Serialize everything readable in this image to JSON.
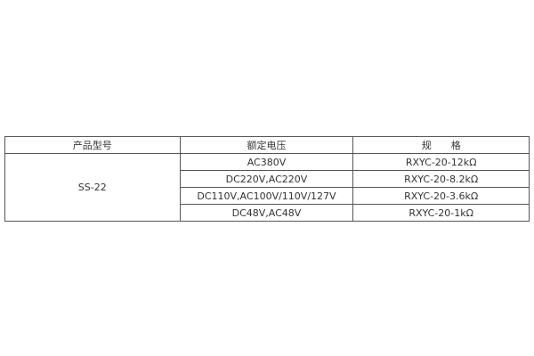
{
  "table": {
    "headers": [
      "产品型号",
      "额定电压",
      "规　　格"
    ],
    "model": "SS-22",
    "rows": [
      {
        "voltage": "AC380V",
        "spec": "RXYC-20-12kΩ"
      },
      {
        "voltage": "DC220V,AC220V",
        "spec": "RXYC-20-8.2kΩ"
      },
      {
        "voltage": "DC110V,AC100V/110V/127V",
        "spec": "RXYC-20-3.6kΩ"
      },
      {
        "voltage": "DC48V,AC48V",
        "spec": "RXYC-20-1kΩ"
      }
    ]
  }
}
